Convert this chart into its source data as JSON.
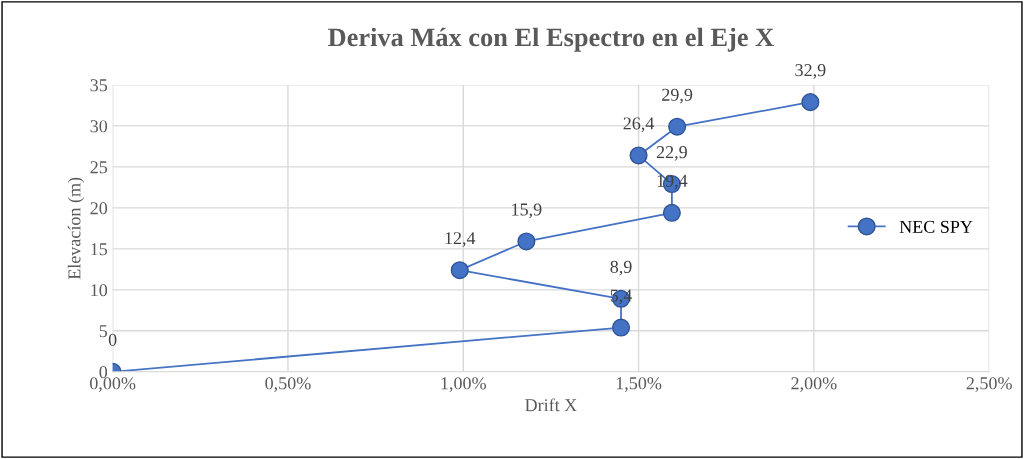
{
  "chart_data": {
    "type": "line",
    "title": "Deriva Máx con El Espectro en el Eje X",
    "xlabel": "Drift X",
    "ylabel": "Elevacíon (m)",
    "x": [
      0.0,
      1.45,
      1.45,
      0.99,
      1.18,
      1.595,
      1.595,
      1.5,
      1.61,
      1.99
    ],
    "series": [
      {
        "name": "NEC SPY",
        "color": "#4472c4",
        "values": [
          0,
          5.4,
          8.9,
          12.4,
          15.9,
          19.4,
          22.9,
          26.4,
          29.9,
          32.9
        ],
        "value_labels": [
          "0",
          "5,4",
          "8,9",
          "12,4",
          "15,9",
          "19,4",
          "22,9",
          "26,4",
          "29,9",
          "32,9"
        ]
      }
    ],
    "xlim": [
      0,
      2.5
    ],
    "xticks": [
      {
        "value": 0,
        "label": "0,00%"
      },
      {
        "value": 0.5,
        "label": "0,50%"
      },
      {
        "value": 1.0,
        "label": "1,00%"
      },
      {
        "value": 1.5,
        "label": "1,50%"
      },
      {
        "value": 2.0,
        "label": "2,00%"
      },
      {
        "value": 2.5,
        "label": "2,50%"
      }
    ],
    "ylim": [
      0,
      35
    ],
    "yticks": [
      0,
      5,
      10,
      15,
      20,
      25,
      30,
      35
    ],
    "grid": true,
    "legend": "center right",
    "marker": "circle",
    "line_style": "solid"
  }
}
